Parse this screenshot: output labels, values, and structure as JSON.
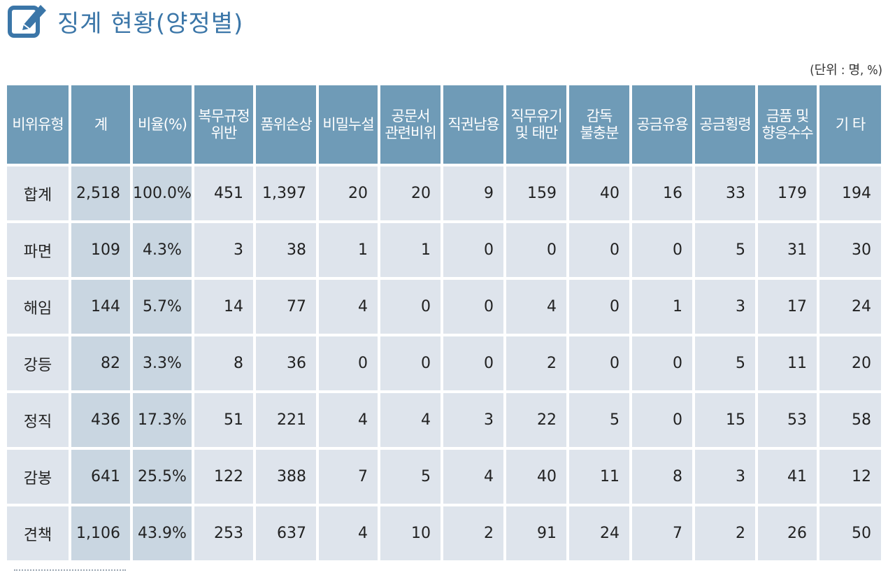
{
  "title": "징계 현황(양정별)",
  "unit": "(단위 : 명, %)",
  "colors": {
    "accent": "#3b76a8",
    "header_bg": "#6f9bb7",
    "cell_bg": "#dee4ec",
    "emph_bg": "#c9d6e1"
  },
  "icons": {
    "header_icon": "edit-icon"
  },
  "table": {
    "headers": [
      "비위유형",
      "계",
      "비율(%)",
      "복무규정\n위반",
      "품위손상",
      "비밀누설",
      "공문서\n관련비위",
      "직권남용",
      "직무유기\n및 태만",
      "감독\n불충분",
      "공금유용",
      "공금횡령",
      "금품 및\n향응수수",
      "기 타"
    ],
    "rows": [
      [
        "합계",
        "2,518",
        "100.0%",
        "451",
        "1,397",
        "20",
        "20",
        "9",
        "159",
        "40",
        "16",
        "33",
        "179",
        "194"
      ],
      [
        "파면",
        "109",
        "4.3%",
        "3",
        "38",
        "1",
        "1",
        "0",
        "0",
        "0",
        "0",
        "5",
        "31",
        "30"
      ],
      [
        "해임",
        "144",
        "5.7%",
        "14",
        "77",
        "4",
        "0",
        "0",
        "4",
        "0",
        "1",
        "3",
        "17",
        "24"
      ],
      [
        "강등",
        "82",
        "3.3%",
        "8",
        "36",
        "0",
        "0",
        "0",
        "2",
        "0",
        "0",
        "5",
        "11",
        "20"
      ],
      [
        "정직",
        "436",
        "17.3%",
        "51",
        "221",
        "4",
        "4",
        "3",
        "22",
        "5",
        "0",
        "15",
        "53",
        "58"
      ],
      [
        "감봉",
        "641",
        "25.5%",
        "122",
        "388",
        "7",
        "5",
        "4",
        "40",
        "11",
        "8",
        "3",
        "41",
        "12"
      ],
      [
        "견책",
        "1,106",
        "43.9%",
        "253",
        "637",
        "4",
        "10",
        "2",
        "91",
        "24",
        "7",
        "2",
        "26",
        "50"
      ]
    ]
  }
}
